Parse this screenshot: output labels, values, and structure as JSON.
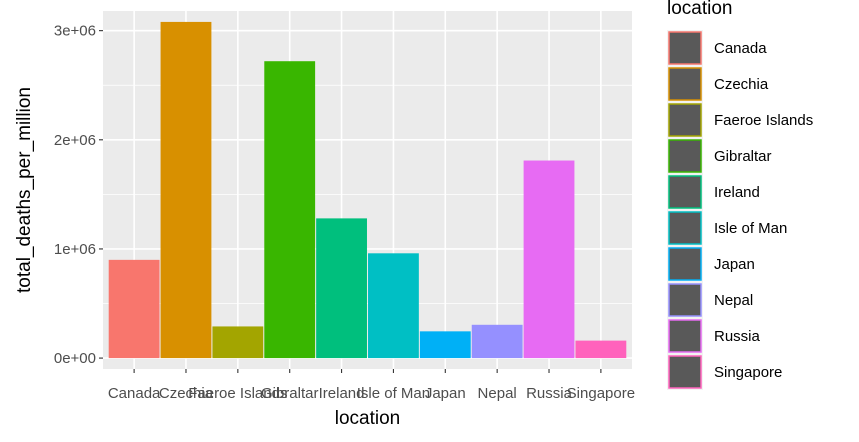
{
  "chart_data": {
    "type": "bar",
    "xlabel": "location",
    "ylabel": "total_deaths_per_million",
    "categories": [
      "Canada",
      "Czechia",
      "Faeroe Islands",
      "Gibraltar",
      "Ireland",
      "Isle of Man",
      "Japan",
      "Nepal",
      "Russia",
      "Singapore"
    ],
    "values": [
      900000,
      3080000,
      290000,
      2720000,
      1280000,
      960000,
      245000,
      305000,
      1810000,
      160000
    ],
    "colors": [
      "#F8766D",
      "#D89000",
      "#A3A500",
      "#39B600",
      "#00BF7D",
      "#00BFC4",
      "#00B0F6",
      "#9590FF",
      "#E76BF3",
      "#FF62BC"
    ],
    "ylim": [
      -100000,
      3180000
    ],
    "yticks": [
      {
        "value": 0,
        "label": "0e+00"
      },
      {
        "value": 1000000,
        "label": "1e+06"
      },
      {
        "value": 2000000,
        "label": "2e+06"
      },
      {
        "value": 3000000,
        "label": "3e+06"
      }
    ],
    "grid": true,
    "legend": {
      "title": "location",
      "position": "right",
      "entries": [
        "Canada",
        "Czechia",
        "Faeroe Islands",
        "Gibraltar",
        "Ireland",
        "Isle of Man",
        "Japan",
        "Nepal",
        "Russia",
        "Singapore"
      ]
    }
  }
}
